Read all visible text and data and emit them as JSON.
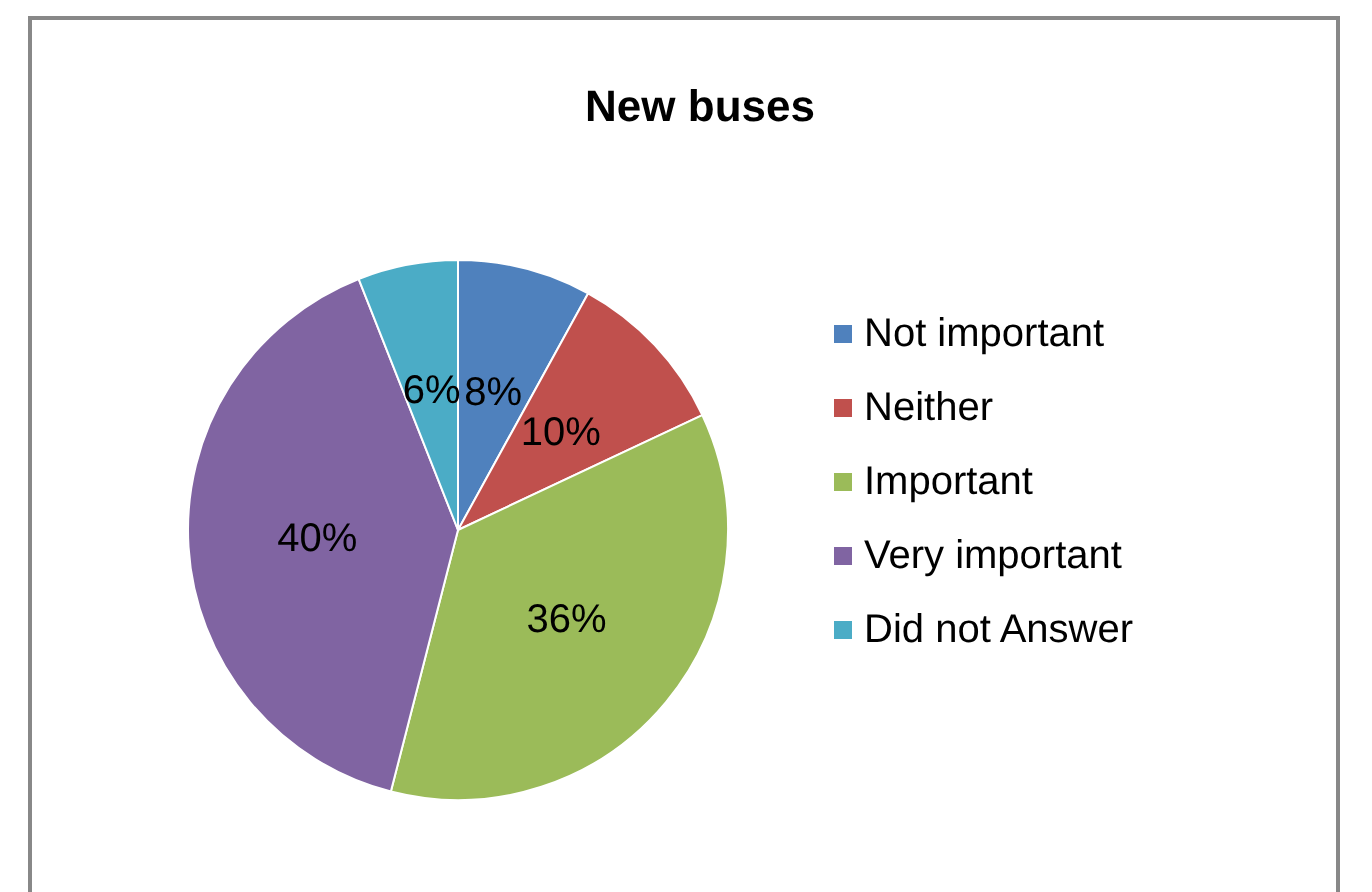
{
  "chart_data": {
    "type": "pie",
    "title": "New buses",
    "categories": [
      "Not important",
      "Neither",
      "Important",
      "Very important",
      "Did not Answer"
    ],
    "values": [
      8,
      10,
      36,
      40,
      6
    ],
    "colors": [
      "#4f81bd",
      "#c0504d",
      "#9bbb59",
      "#8064a2",
      "#4bacc6"
    ],
    "value_labels": [
      "8%",
      "10%",
      "36%",
      "40%",
      "6%"
    ],
    "legend": "right"
  }
}
